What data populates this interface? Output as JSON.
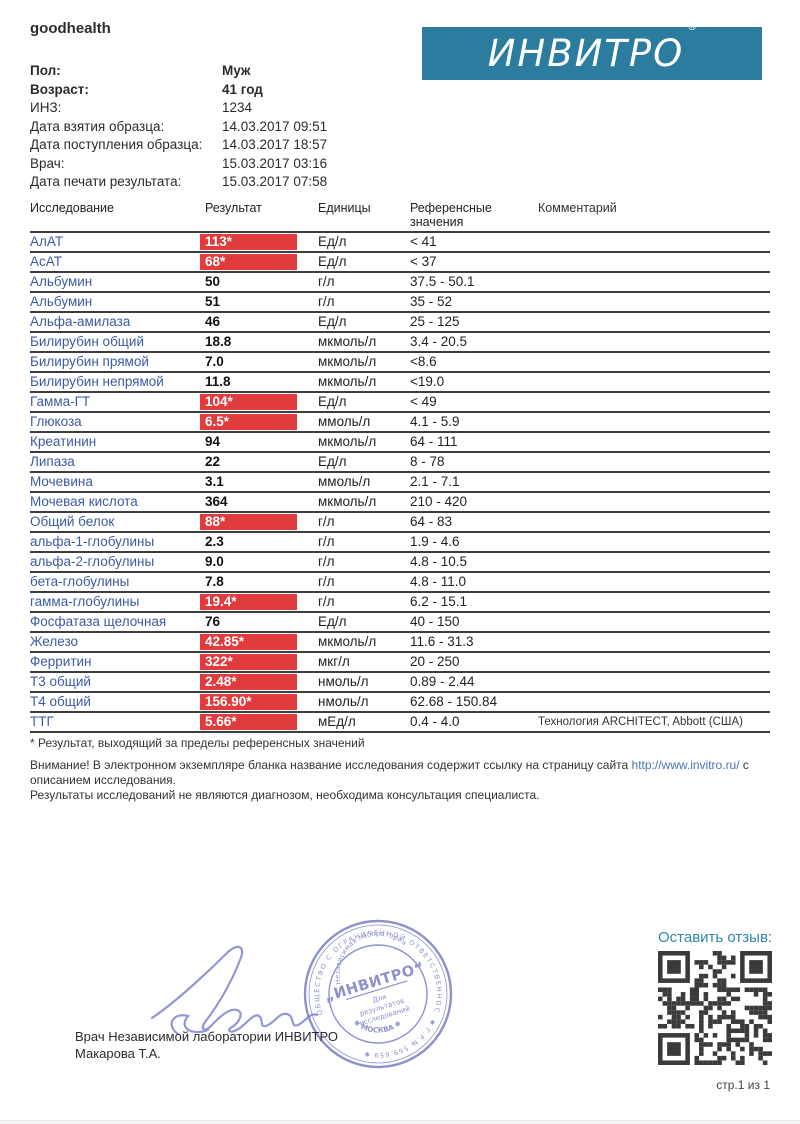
{
  "header": {
    "brand": "goodhealth",
    "logo_text": "ИНВИТРО",
    "logo_reg": "®"
  },
  "colors": {
    "logo_teal": "#2b7c9e",
    "abnormal_red": "#e23b3e",
    "test_name_blue": "#3d5aa4",
    "link_blue": "#4a74b8",
    "review_teal": "#2e86ae",
    "stamp_blue": "#7e82c6",
    "table_line": "#3d3d3d"
  },
  "patient": {
    "rows": [
      {
        "label": "Пол:",
        "value": "Муж",
        "bold": true
      },
      {
        "label": "Возраст:",
        "value": "41 год",
        "bold": true
      },
      {
        "label": "ИНЗ:",
        "value": "1234",
        "bold": false
      },
      {
        "label": "Дата взятия образца:",
        "value": "14.03.2017 09:51",
        "bold": false
      },
      {
        "label": "Дата поступления образца:",
        "value": "14.03.2017 18:57",
        "bold": false
      },
      {
        "label": "Врач:",
        "value": "15.03.2017 03:16",
        "bold": false
      },
      {
        "label": "Дата печати результата:",
        "value": "15.03.2017 07:58",
        "bold": false
      }
    ]
  },
  "table": {
    "headers": {
      "name": "Исследование",
      "result": "Результат",
      "units": "Единицы",
      "ref_line1": "Референсные",
      "ref_line2": "значения",
      "comment": "Комментарий"
    },
    "rows": [
      {
        "name": "АлАТ",
        "result": "113*",
        "units": "Ед/л",
        "ref": "< 41",
        "comment": "",
        "abnormal": true
      },
      {
        "name": "АсАТ",
        "result": "68*",
        "units": "Ед/л",
        "ref": "< 37",
        "comment": "",
        "abnormal": true
      },
      {
        "name": "Альбумин",
        "result": "50",
        "units": "г/л",
        "ref": "37.5 - 50.1",
        "comment": "",
        "abnormal": false
      },
      {
        "name": "Альбумин",
        "result": "51",
        "units": "г/л",
        "ref": "35 - 52",
        "comment": "",
        "abnormal": false
      },
      {
        "name": "Альфа-амилаза",
        "result": "46",
        "units": "Ед/л",
        "ref": "25 - 125",
        "comment": "",
        "abnormal": false
      },
      {
        "name": "Билирубин общий",
        "result": "18.8",
        "units": "мкмоль/л",
        "ref": "3.4 - 20.5",
        "comment": "",
        "abnormal": false
      },
      {
        "name": "Билирубин прямой",
        "result": "7.0",
        "units": "мкмоль/л",
        "ref": "<8.6",
        "comment": "",
        "abnormal": false
      },
      {
        "name": "Билирубин непрямой",
        "result": "11.8",
        "units": "мкмоль/л",
        "ref": "<19.0",
        "comment": "",
        "abnormal": false
      },
      {
        "name": "Гамма-ГТ",
        "result": "104*",
        "units": "Ед/л",
        "ref": "< 49",
        "comment": "",
        "abnormal": true
      },
      {
        "name": "Глюкоза",
        "result": "6.5*",
        "units": "ммоль/л",
        "ref": "4.1 - 5.9",
        "comment": "",
        "abnormal": true
      },
      {
        "name": "Креатинин",
        "result": "94",
        "units": "мкмоль/л",
        "ref": "64 - 111",
        "comment": "",
        "abnormal": false
      },
      {
        "name": "Липаза",
        "result": "22",
        "units": "Ед/л",
        "ref": "8 - 78",
        "comment": "",
        "abnormal": false
      },
      {
        "name": "Мочевина",
        "result": "3.1",
        "units": "ммоль/л",
        "ref": "2.1 - 7.1",
        "comment": "",
        "abnormal": false
      },
      {
        "name": "Мочевая кислота",
        "result": "364",
        "units": "мкмоль/л",
        "ref": "210 - 420",
        "comment": "",
        "abnormal": false
      },
      {
        "name": "Общий белок",
        "result": "88*",
        "units": "г/л",
        "ref": "64 - 83",
        "comment": "",
        "abnormal": true
      },
      {
        "name": "альфа-1-глобулины",
        "result": "2.3",
        "units": "г/л",
        "ref": "1.9 - 4.6",
        "comment": "",
        "abnormal": false
      },
      {
        "name": "альфа-2-глобулины",
        "result": "9.0",
        "units": "г/л",
        "ref": "4.8 - 10.5",
        "comment": "",
        "abnormal": false
      },
      {
        "name": "бета-глобулины",
        "result": "7.8",
        "units": "г/л",
        "ref": "4.8 - 11.0",
        "comment": "",
        "abnormal": false
      },
      {
        "name": "гамма-глобулины",
        "result": "19.4*",
        "units": "г/л",
        "ref": "6.2 - 15.1",
        "comment": "",
        "abnormal": true
      },
      {
        "name": "Фосфатаза щелочная",
        "result": "76",
        "units": "Ед/л",
        "ref": "40 - 150",
        "comment": "",
        "abnormal": false
      },
      {
        "name": "Железо",
        "result": "42.85*",
        "units": "мкмоль/л",
        "ref": "11.6 - 31.3",
        "comment": "",
        "abnormal": true
      },
      {
        "name": "Ферритин",
        "result": "322*",
        "units": "мкг/л",
        "ref": "20 - 250",
        "comment": "",
        "abnormal": true
      },
      {
        "name": "Т3 общий",
        "result": "2.48*",
        "units": "нмоль/л",
        "ref": "0.89 - 2.44",
        "comment": "",
        "abnormal": true
      },
      {
        "name": "Т4 общий",
        "result": "156.90*",
        "units": "нмоль/л",
        "ref": "62.68 - 150.84",
        "comment": "",
        "abnormal": true
      },
      {
        "name": "ТТГ",
        "result": "5.66*",
        "units": "мЕд/л",
        "ref": "0.4 - 4.0",
        "comment": "Технология ARCHITECT, Abbott (США)",
        "abnormal": true
      }
    ]
  },
  "footnotes": {
    "asterisk": "* Результат, выходящий за пределы референсных значений",
    "attention_pre": "Внимание! В электронном экземпляре бланка название исследования содержит ссылку на страницу сайта ",
    "attention_link": "http://www.invitro.ru/",
    "attention_post": " с описанием исследования.",
    "disclaimer": "Результаты исследований не являются диагнозом, необходима консультация специалиста."
  },
  "signature_block": {
    "doctor_line1": "Врач Независимой лаборатории ИНВИТРО",
    "doctor_line2": "Макарова Т.А."
  },
  "stamp": {
    "outer_top": "ОБЩЕСТВО С ОГРАНИЧЕННОЙ ОТВЕТСТВЕННОСТЬЮ",
    "outer_right": "✱  Г.Р.№ 569.659  ✱",
    "inner_top": "Независимая лаборатория",
    "inner_bottom": "✱  МОСКВА  ✱",
    "center_name": "„ИНВИТРО“",
    "center_line1": "Для",
    "center_line2": "результатов",
    "center_line3": "исследований"
  },
  "review": {
    "label": "Оставить отзыв:"
  },
  "footer": {
    "page_num": "стр.1 из 1"
  }
}
